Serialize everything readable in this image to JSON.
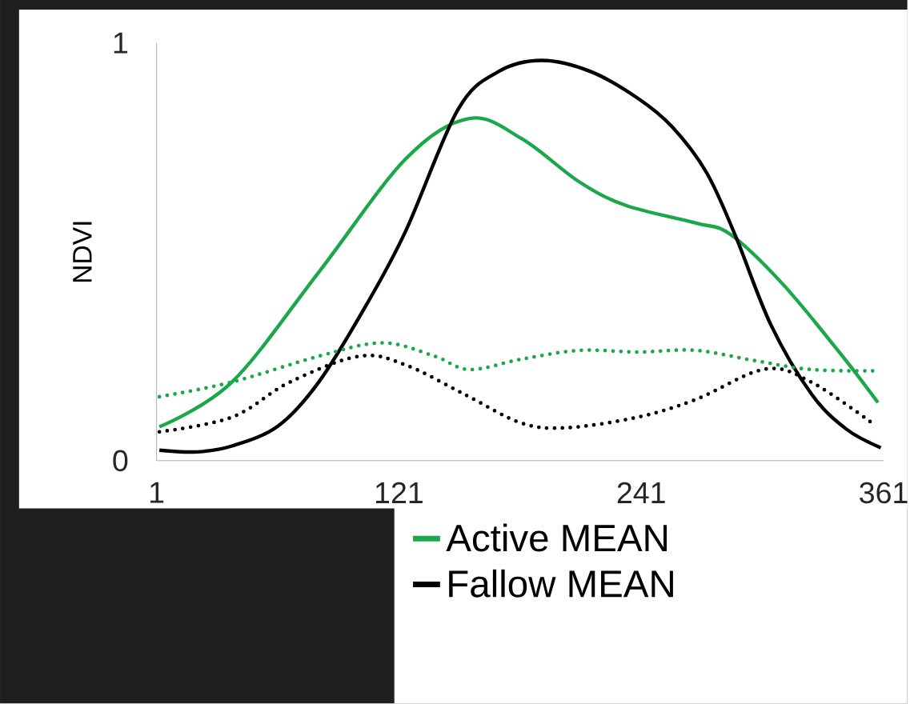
{
  "chart_data": {
    "type": "line",
    "ylabel": "NDVI",
    "xlim": [
      1,
      361
    ],
    "ylim": [
      0,
      1
    ],
    "xticks": [
      1,
      121,
      241,
      361
    ],
    "yticks": [
      0,
      1
    ],
    "grid": false,
    "legend": "bottom right",
    "marker": "none",
    "series": [
      {
        "name": "Active MEAN",
        "color": "#1aa84b",
        "line_style": "solid",
        "x": [
          2.4,
          38.3,
          81.3,
          124.3,
          155.9,
          181.7,
          210.4,
          233.4,
          267.8,
          285.0,
          310.8,
          339.5,
          358.2
        ],
        "values": [
          0.081,
          0.188,
          0.451,
          0.722,
          0.819,
          0.771,
          0.667,
          0.611,
          0.569,
          0.542,
          0.424,
          0.257,
          0.139
        ]
      },
      {
        "name": "Fallow MEAN",
        "color": "#000000",
        "line_style": "solid",
        "x": [
          2.4,
          21.1,
          38.3,
          61.2,
          81.3,
          104.3,
          124.3,
          150.2,
          170.2,
          191.8,
          216.1,
          239.1,
          256.3,
          273.5,
          287.9,
          305.1,
          325.2,
          342.4,
          359.6
        ],
        "values": [
          0.025,
          0.021,
          0.035,
          0.083,
          0.188,
          0.368,
          0.549,
          0.84,
          0.931,
          0.958,
          0.931,
          0.868,
          0.799,
          0.688,
          0.535,
          0.326,
          0.16,
          0.076,
          0.031
        ]
      },
      {
        "color": "#1aa84b",
        "line_style": "dotted",
        "x": [
          2.4,
          38.3,
          81.3,
          112.8,
          138.7,
          155.9,
          181.7,
          210.4,
          239.1,
          267.8,
          296.5,
          325.2,
          358.2
        ],
        "values": [
          0.153,
          0.188,
          0.25,
          0.282,
          0.25,
          0.218,
          0.243,
          0.264,
          0.26,
          0.264,
          0.24,
          0.218,
          0.215
        ]
      },
      {
        "color": "#000000",
        "line_style": "dotted",
        "x": [
          2.4,
          38.3,
          67.0,
          101.4,
          124.3,
          153.0,
          181.7,
          204.6,
          239.1,
          267.8,
          302.2,
          325.2,
          355.3
        ],
        "values": [
          0.069,
          0.104,
          0.188,
          0.25,
          0.229,
          0.16,
          0.09,
          0.079,
          0.104,
          0.146,
          0.219,
          0.188,
          0.09
        ]
      }
    ]
  }
}
